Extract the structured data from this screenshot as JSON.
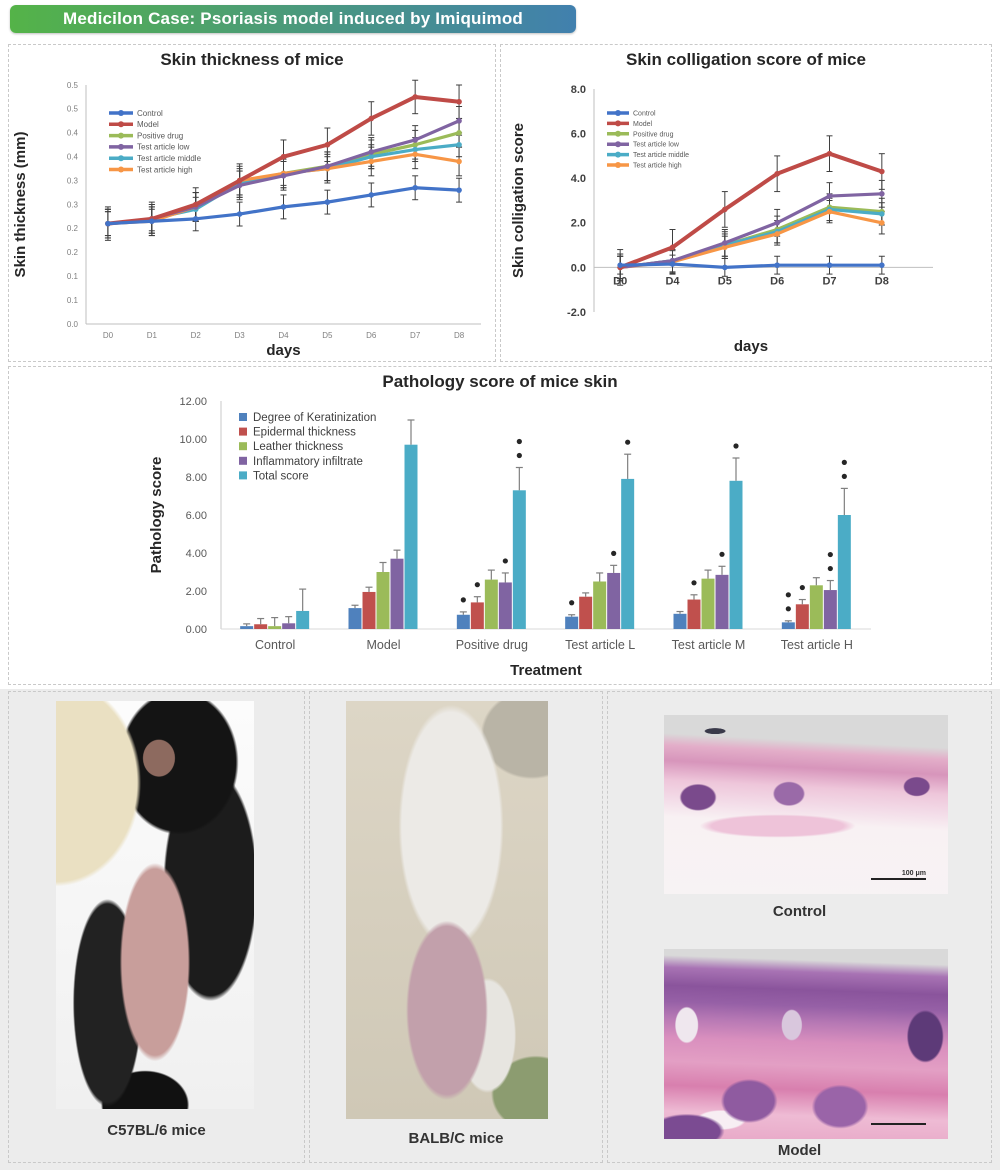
{
  "banner": {
    "text": "Medicilon Case: Psoriasis model induced by Imiquimod",
    "gradient_from": "#54b348",
    "gradient_to": "#4180ae"
  },
  "chart_data": [
    {
      "id": "thickness",
      "type": "line",
      "title": "Skin thickness of mice",
      "xlabel": "days",
      "ylabel": "Skin thickness (mm)",
      "x": [
        "D0",
        "D1",
        "D2",
        "D3",
        "D4",
        "D5",
        "D6",
        "D7",
        "D8"
      ],
      "ylim": [
        0,
        0.5
      ],
      "ytick_step": 0.05,
      "legend_position": "top-left-inside",
      "series": [
        {
          "name": "Control",
          "color": "#4273c8",
          "err": 0.025,
          "values": [
            0.21,
            0.215,
            0.22,
            0.23,
            0.245,
            0.255,
            0.27,
            0.285,
            0.28
          ]
        },
        {
          "name": "Model",
          "color": "#bf4b47",
          "err": 0.035,
          "values": [
            0.21,
            0.22,
            0.25,
            0.3,
            0.35,
            0.375,
            0.43,
            0.475,
            0.465
          ]
        },
        {
          "name": "Positive drug",
          "color": "#9bbb59",
          "err": 0.03,
          "values": [
            0.21,
            0.22,
            0.245,
            0.295,
            0.315,
            0.33,
            0.355,
            0.375,
            0.4
          ]
        },
        {
          "name": "Test article low",
          "color": "#8064a2",
          "err": 0.03,
          "values": [
            0.21,
            0.22,
            0.245,
            0.29,
            0.31,
            0.33,
            0.36,
            0.385,
            0.425
          ]
        },
        {
          "name": "Test article middle",
          "color": "#4bacc6",
          "err": 0.025,
          "values": [
            0.21,
            0.22,
            0.24,
            0.295,
            0.315,
            0.325,
            0.35,
            0.365,
            0.375
          ]
        },
        {
          "name": "Test article high",
          "color": "#f79646",
          "err": 0.03,
          "values": [
            0.21,
            0.215,
            0.245,
            0.3,
            0.315,
            0.325,
            0.34,
            0.355,
            0.34
          ]
        }
      ]
    },
    {
      "id": "colligation",
      "type": "line",
      "title": "Skin colligation score of mice",
      "xlabel": "days",
      "ylabel": "Skin colligation score",
      "x": [
        "D0",
        "D4",
        "D5",
        "D6",
        "D7",
        "D8"
      ],
      "ylim": [
        -2,
        8
      ],
      "ytick_step": 2,
      "legend_position": "top-left-inside",
      "series": [
        {
          "name": "Control",
          "color": "#4273c8",
          "err": 0.4,
          "values": [
            0.1,
            0.15,
            0,
            0.1,
            0.1,
            0.1
          ]
        },
        {
          "name": "Model",
          "color": "#bf4b47",
          "err": 0.8,
          "values": [
            0,
            0.9,
            2.6,
            4.2,
            5.1,
            4.3
          ]
        },
        {
          "name": "Positive drug",
          "color": "#9bbb59",
          "err": 0.6,
          "values": [
            0,
            0.3,
            1.0,
            1.7,
            2.7,
            2.5
          ]
        },
        {
          "name": "Test article low",
          "color": "#8064a2",
          "err": 0.6,
          "values": [
            0,
            0.3,
            1.1,
            2.0,
            3.2,
            3.3
          ]
        },
        {
          "name": "Test article middle",
          "color": "#4bacc6",
          "err": 0.5,
          "values": [
            0,
            0.3,
            1.0,
            1.6,
            2.6,
            2.4
          ]
        },
        {
          "name": "Test article high",
          "color": "#f79646",
          "err": 0.5,
          "values": [
            0,
            0.25,
            0.9,
            1.5,
            2.5,
            2.0
          ]
        }
      ]
    },
    {
      "id": "pathology",
      "type": "bar",
      "title": "Pathology score of mice skin",
      "xlabel": "Treatment",
      "ylabel": "Pathology score",
      "categories": [
        "Control",
        "Model",
        "Positive drug",
        "Test article L",
        "Test article M",
        "Test article H"
      ],
      "ylim": [
        0,
        12
      ],
      "ytick_step": 2,
      "legend_position": "top-left-inside",
      "series": [
        {
          "name": "Degree of Keratinization",
          "color": "#4f81bd",
          "values": [
            0.15,
            1.1,
            0.75,
            0.65,
            0.8,
            0.35
          ],
          "errors": [
            0.12,
            0.15,
            0.15,
            0.1,
            0.12,
            0.08
          ],
          "stars": [
            "",
            "",
            "*",
            "*",
            "",
            "**"
          ]
        },
        {
          "name": "Epidermal thickness",
          "color": "#c0504d",
          "values": [
            0.25,
            1.95,
            1.4,
            1.7,
            1.55,
            1.3
          ],
          "errors": [
            0.3,
            0.25,
            0.3,
            0.2,
            0.25,
            0.25
          ],
          "stars": [
            "",
            "",
            "*",
            "",
            "*",
            "*"
          ]
        },
        {
          "name": "Leather thickness",
          "color": "#9bbb59",
          "values": [
            0.15,
            3.0,
            2.6,
            2.5,
            2.65,
            2.3
          ],
          "errors": [
            0.45,
            0.5,
            0.5,
            0.45,
            0.45,
            0.4
          ],
          "stars": [
            "",
            "",
            "",
            "",
            "",
            ""
          ]
        },
        {
          "name": "Inflammatory infiltrate",
          "color": "#8064a2",
          "values": [
            0.3,
            3.7,
            2.45,
            2.95,
            2.85,
            2.05
          ],
          "errors": [
            0.35,
            0.45,
            0.5,
            0.4,
            0.45,
            0.5
          ],
          "stars": [
            "",
            "",
            "*",
            "*",
            "*",
            "**"
          ]
        },
        {
          "name": "Total score",
          "color": "#4bacc6",
          "values": [
            0.95,
            9.7,
            7.3,
            7.9,
            7.8,
            6.0
          ],
          "errors": [
            1.15,
            1.3,
            1.2,
            1.3,
            1.2,
            1.4
          ],
          "stars": [
            "",
            "",
            "**",
            "*",
            "*",
            "**"
          ]
        }
      ]
    }
  ],
  "photos": {
    "c57": {
      "caption": "C57BL/6 mice"
    },
    "balb": {
      "caption": "BALB/C mice"
    }
  },
  "histology": {
    "control": {
      "caption": "Control",
      "scale_label": "100 μm"
    },
    "model": {
      "caption": "Model"
    }
  }
}
